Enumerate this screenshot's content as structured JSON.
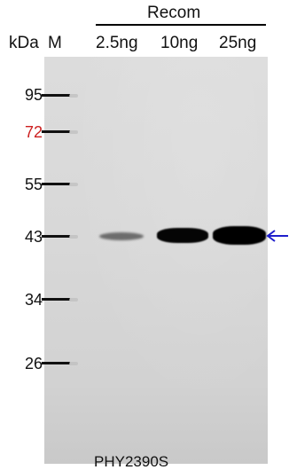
{
  "header": {
    "group_label": "Recom",
    "kda_label": "kDa",
    "marker_label": "M",
    "lanes": [
      {
        "label": "2.5ng"
      },
      {
        "label": "10ng"
      },
      {
        "label": "25ng"
      }
    ]
  },
  "ladder": {
    "markers": [
      {
        "label": "95"
      },
      {
        "label": "72",
        "color": "#cc1f1f"
      },
      {
        "label": "55"
      },
      {
        "label": "43"
      },
      {
        "label": "34"
      },
      {
        "label": "26"
      }
    ]
  },
  "footer": {
    "sample_label": "PHY2390S"
  },
  "colors": {
    "accent_marker": "#cc1f1f",
    "arrow": "#1f1fcc"
  },
  "icons": {
    "arrow": "left-arrow-icon"
  }
}
